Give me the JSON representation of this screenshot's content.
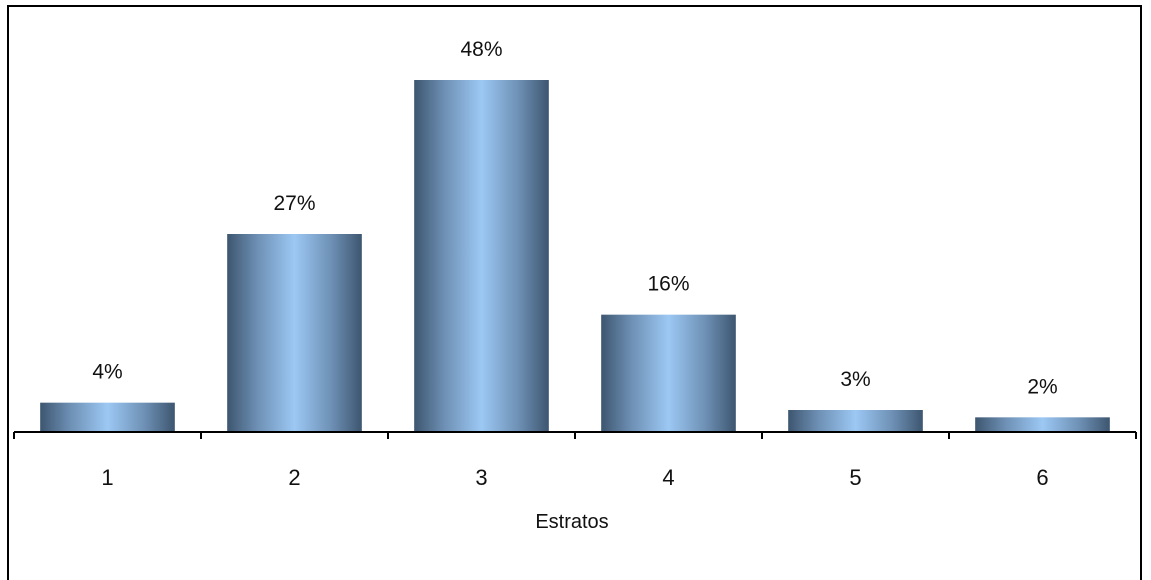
{
  "chart_data": {
    "type": "bar",
    "categories": [
      "1",
      "2",
      "3",
      "4",
      "5",
      "6"
    ],
    "values": [
      4,
      27,
      48,
      16,
      3,
      2
    ],
    "data_labels": [
      "4%",
      "27%",
      "48%",
      "16%",
      "3%",
      "2%"
    ],
    "value_unit": "%",
    "xlabel": "Estratos",
    "ylabel": "",
    "title": "",
    "ylim": [
      0,
      48
    ],
    "grid": false,
    "legend": "none",
    "bar_color_edge": "#3d5670",
    "bar_color_center": "#9cc8f4"
  }
}
